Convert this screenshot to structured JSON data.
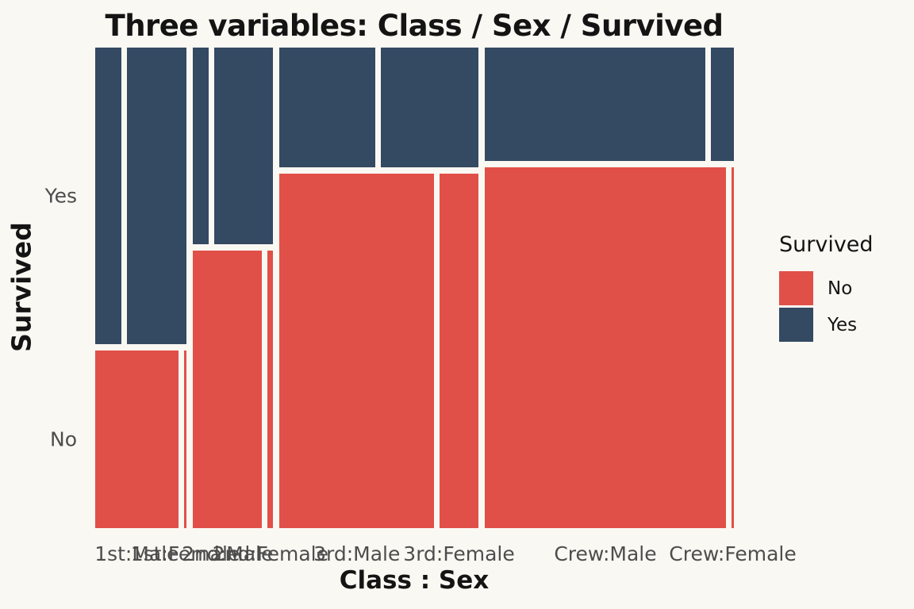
{
  "title": "Three variables: Class / Sex / Survived",
  "background_color": "#FAF8F2",
  "text_colors": {
    "titles": "#141414",
    "tick_labels": "#4D4D4D"
  },
  "legend": {
    "title": "Survived",
    "position": "right",
    "items": [
      {
        "label": "No",
        "color": "#E05048"
      },
      {
        "label": "Yes",
        "color": "#344962"
      }
    ]
  },
  "chart_data": {
    "type": "mosaic",
    "title": "Three variables: Class / Sex / Survived",
    "xlabel": "Class : Sex",
    "ylabel": "Survived",
    "x_variables": [
      "Class",
      "Sex"
    ],
    "fill_variable": "Survived",
    "row_order_top_to_bottom": [
      "Yes",
      "No"
    ],
    "y_tick_labels": [
      "Yes",
      "No"
    ],
    "x_tick_labels": [
      "1st:Male",
      "1st:Female",
      "2nd:Male",
      "2nd:Female",
      "3rd:Male",
      "3rd:Female",
      "Crew:Male",
      "Crew:Female"
    ],
    "colors": {
      "No": "#E05048",
      "Yes": "#344962"
    },
    "grid": false,
    "legend_position": "right",
    "cells": [
      {
        "class": "1st",
        "sex": "Male",
        "no": 118,
        "yes": 62
      },
      {
        "class": "1st",
        "sex": "Female",
        "no": 4,
        "yes": 141
      },
      {
        "class": "2nd",
        "sex": "Male",
        "no": 154,
        "yes": 25
      },
      {
        "class": "2nd",
        "sex": "Female",
        "no": 13,
        "yes": 93
      },
      {
        "class": "3rd",
        "sex": "Male",
        "no": 422,
        "yes": 88
      },
      {
        "class": "3rd",
        "sex": "Female",
        "no": 106,
        "yes": 90
      },
      {
        "class": "Crew",
        "sex": "Male",
        "no": 670,
        "yes": 192
      },
      {
        "class": "Crew",
        "sex": "Female",
        "no": 3,
        "yes": 20
      }
    ]
  }
}
